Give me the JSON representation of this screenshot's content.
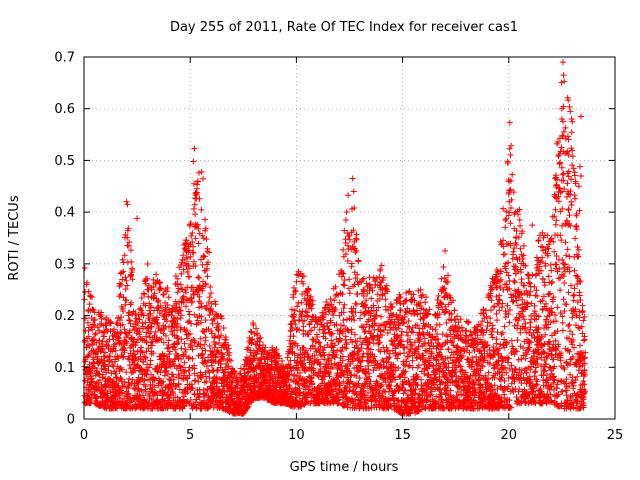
{
  "chart_data": {
    "type": "scatter",
    "title": "Day 255 of 2011, Rate Of TEC Index for receiver cas1",
    "xlabel": "GPS time / hours",
    "ylabel": "ROTI / TECUs",
    "xlim": [
      0,
      25
    ],
    "ylim": [
      0,
      0.7
    ],
    "x_ticks": [
      0,
      5,
      10,
      15,
      20,
      25
    ],
    "x_tick_labels": [
      "0",
      "5",
      "10",
      "15",
      "20",
      "25"
    ],
    "y_ticks": [
      0,
      0.1,
      0.2,
      0.3,
      0.4,
      0.5,
      0.6,
      0.7
    ],
    "y_tick_labels": [
      "0",
      "0.1",
      "0.2",
      "0.3",
      "0.4",
      "0.5",
      "0.6",
      "0.7"
    ],
    "grid": true,
    "marker": "+",
    "marker_color": "#ff0000",
    "envelope_hours": [
      0,
      0.5,
      1,
      1.5,
      2,
      2.5,
      3,
      3.5,
      4,
      4.5,
      5,
      5.5,
      6,
      6.5,
      7,
      7.5,
      8,
      8.5,
      9,
      9.5,
      10,
      10.5,
      11,
      11.5,
      12,
      12.5,
      13,
      13.5,
      14,
      14.5,
      15,
      15.5,
      16,
      16.5,
      17,
      17.5,
      18,
      18.5,
      19,
      19.5,
      20,
      20.5,
      21,
      21.5,
      22,
      22.5,
      23,
      23.5
    ],
    "envelope_roti_max": [
      0.3,
      0.22,
      0.2,
      0.18,
      0.42,
      0.2,
      0.3,
      0.28,
      0.25,
      0.3,
      0.39,
      0.52,
      0.27,
      0.2,
      0.1,
      0.1,
      0.2,
      0.14,
      0.14,
      0.1,
      0.3,
      0.27,
      0.2,
      0.24,
      0.28,
      0.46,
      0.31,
      0.27,
      0.3,
      0.22,
      0.25,
      0.25,
      0.25,
      0.2,
      0.32,
      0.2,
      0.2,
      0.18,
      0.25,
      0.3,
      0.57,
      0.4,
      0.27,
      0.37,
      0.35,
      0.69,
      0.58,
      0.2
    ],
    "envelope_roti_min": [
      0.03,
      0.03,
      0.02,
      0.02,
      0.02,
      0.02,
      0.02,
      0.02,
      0.02,
      0.02,
      0.02,
      0.02,
      0.02,
      0.02,
      0.01,
      0.01,
      0.04,
      0.04,
      0.03,
      0.03,
      0.02,
      0.03,
      0.03,
      0.03,
      0.03,
      0.02,
      0.02,
      0.02,
      0.02,
      0.02,
      0.01,
      0.01,
      0.02,
      0.02,
      0.02,
      0.02,
      0.02,
      0.02,
      0.02,
      0.02,
      0.02,
      0.03,
      0.03,
      0.03,
      0.03,
      0.02,
      0.02,
      0.02
    ],
    "outliers": [
      {
        "x": 22.55,
        "y": 0.69
      },
      {
        "x": 22.58,
        "y": 0.665
      },
      {
        "x": 22.5,
        "y": 0.58
      },
      {
        "x": 22.55,
        "y": 0.575
      },
      {
        "x": 22.52,
        "y": 0.548
      },
      {
        "x": 22.48,
        "y": 0.525
      },
      {
        "x": 23.4,
        "y": 0.585
      },
      {
        "x": 20.05,
        "y": 0.573
      },
      {
        "x": 5.2,
        "y": 0.523
      },
      {
        "x": 5.15,
        "y": 0.498
      },
      {
        "x": 5.18,
        "y": 0.455
      },
      {
        "x": 5.22,
        "y": 0.415
      },
      {
        "x": 12.65,
        "y": 0.465
      },
      {
        "x": 12.7,
        "y": 0.44
      },
      {
        "x": 12.72,
        "y": 0.408
      },
      {
        "x": 12.68,
        "y": 0.365
      },
      {
        "x": 23.35,
        "y": 0.488
      },
      {
        "x": 23.4,
        "y": 0.47
      },
      {
        "x": 23.3,
        "y": 0.45
      },
      {
        "x": 23.33,
        "y": 0.403
      },
      {
        "x": 20.0,
        "y": 0.435
      },
      {
        "x": 20.5,
        "y": 0.405
      },
      {
        "x": 2.0,
        "y": 0.42
      },
      {
        "x": 2.05,
        "y": 0.415
      },
      {
        "x": 2.5,
        "y": 0.388
      },
      {
        "x": 1.95,
        "y": 0.356
      },
      {
        "x": 17.0,
        "y": 0.325
      },
      {
        "x": 21.1,
        "y": 0.375
      },
      {
        "x": 22.5,
        "y": 0.44
      }
    ]
  }
}
